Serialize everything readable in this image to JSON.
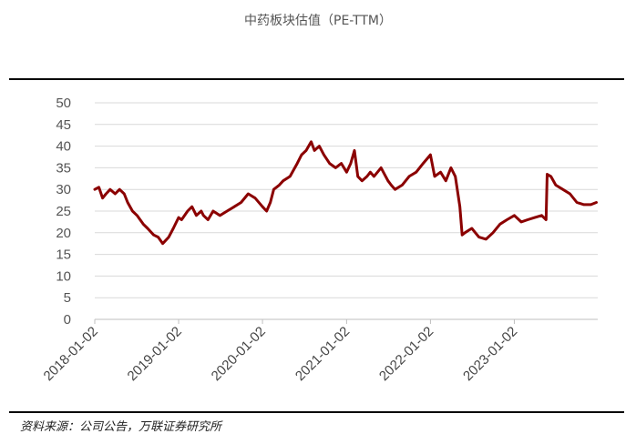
{
  "chart_data": {
    "type": "line",
    "title": "中药板块估值（PE-TTM）",
    "source": "资料来源：公司公告，万联证券研究所",
    "xlabel": "",
    "ylabel": "",
    "ylim": [
      0,
      50
    ],
    "yticks": [
      0,
      5,
      10,
      15,
      20,
      25,
      30,
      35,
      40,
      45,
      50
    ],
    "xticks": [
      "2018-01-02",
      "2019-01-02",
      "2020-01-02",
      "2021-01-02",
      "2022-01-02",
      "2023-01-02"
    ],
    "grid": "horizontal",
    "color": "#8b0000",
    "series": [
      {
        "x": [
          "2018-01-02",
          "2018-01-20",
          "2018-02-05",
          "2018-02-20",
          "2018-03-10",
          "2018-04-01",
          "2018-04-20",
          "2018-05-10",
          "2018-05-25",
          "2018-06-15",
          "2018-07-05",
          "2018-08-01",
          "2018-08-20",
          "2018-09-15",
          "2018-10-05",
          "2018-10-25",
          "2018-11-20",
          "2018-12-10",
          "2019-01-02",
          "2019-01-15",
          "2019-02-10",
          "2019-03-01",
          "2019-03-20",
          "2019-04-10",
          "2019-04-20",
          "2019-05-10",
          "2019-06-01",
          "2019-07-01",
          "2019-08-01",
          "2019-09-01",
          "2019-10-01",
          "2019-11-01",
          "2019-12-01",
          "2020-01-02",
          "2020-01-20",
          "2020-02-05",
          "2020-02-20",
          "2020-03-15",
          "2020-04-01",
          "2020-05-01",
          "2020-06-01",
          "2020-06-20",
          "2020-07-10",
          "2020-08-01",
          "2020-08-15",
          "2020-09-05",
          "2020-09-25",
          "2020-10-20",
          "2020-11-15",
          "2020-12-10",
          "2021-01-02",
          "2021-01-20",
          "2021-02-05",
          "2021-02-20",
          "2021-03-10",
          "2021-04-01",
          "2021-04-15",
          "2021-05-01",
          "2021-06-01",
          "2021-07-01",
          "2021-07-15",
          "2021-08-01",
          "2021-09-01",
          "2021-10-01",
          "2021-11-01",
          "2021-12-01",
          "2022-01-02",
          "2022-01-20",
          "2022-02-15",
          "2022-03-10",
          "2022-04-01",
          "2022-04-20",
          "2022-05-10",
          "2022-05-20",
          "2022-06-01",
          "2022-07-01",
          "2022-08-01",
          "2022-09-01",
          "2022-10-01",
          "2022-11-01",
          "2022-12-01",
          "2023-01-02",
          "2023-02-01",
          "2023-03-01",
          "2023-04-01",
          "2023-05-01",
          "2023-05-20",
          "2023-05-25",
          "2023-06-10",
          "2023-07-01",
          "2023-08-01",
          "2023-09-01",
          "2023-10-01",
          "2023-11-01",
          "2023-12-01",
          "2023-12-25"
        ],
        "y": [
          30,
          30.5,
          28,
          29,
          30,
          29,
          30,
          29,
          27,
          25,
          24,
          22,
          21,
          19.5,
          19,
          17.5,
          19,
          21,
          23.5,
          23,
          25,
          26,
          24,
          25,
          24,
          23,
          25,
          24,
          25,
          26,
          27,
          29,
          28,
          26,
          25,
          27,
          30,
          31,
          32,
          33,
          36,
          38,
          39,
          41,
          39,
          40,
          38,
          36,
          35,
          36,
          34,
          36,
          39,
          33,
          32,
          33,
          34,
          33,
          35,
          32,
          31,
          30,
          31,
          33,
          34,
          36,
          38,
          33,
          34,
          32,
          35,
          33,
          26,
          19.5,
          20,
          21,
          19,
          18.5,
          20,
          22,
          23,
          24,
          22.5,
          23,
          23.5,
          24,
          23,
          33.5,
          33,
          31,
          30,
          29,
          27,
          26.5,
          26.5,
          27
        ]
      }
    ]
  }
}
